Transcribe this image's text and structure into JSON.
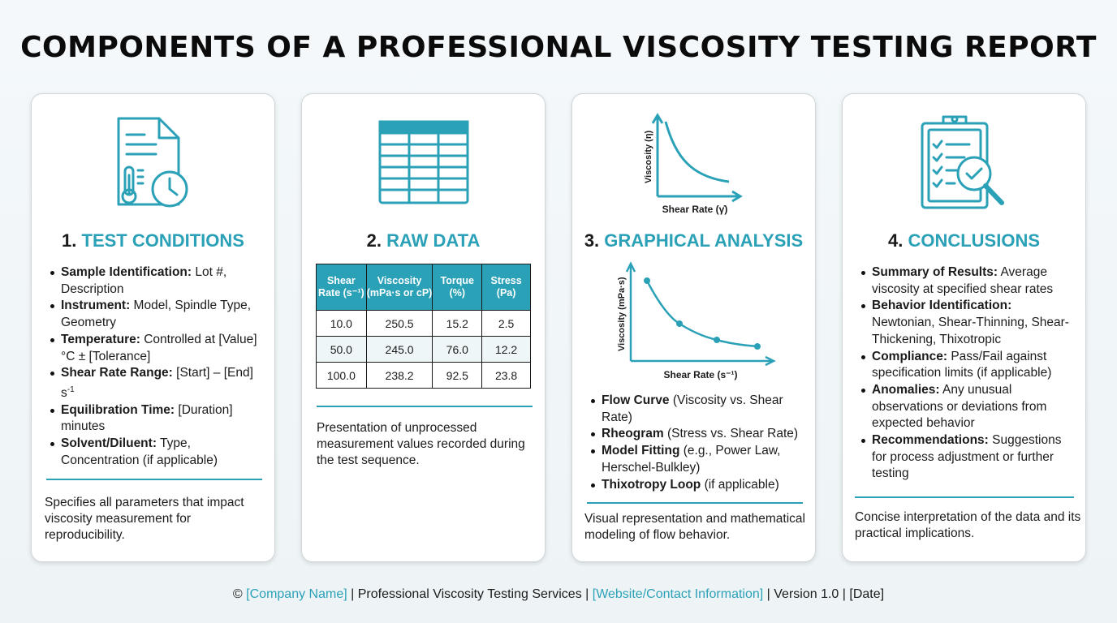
{
  "title": "COMPONENTS OF A PROFESSIONAL VISCOSITY TESTING REPORT",
  "colors": {
    "accent": "#2ba1b8",
    "text": "#111111",
    "card_bg": "#ffffff"
  },
  "cards": [
    {
      "number": "1.",
      "title": "TEST CONDITIONS",
      "icon": "document-thermometer-clock-icon",
      "bullets": [
        {
          "label": "Sample Identification:",
          "text": " Lot #, Description"
        },
        {
          "label": "Instrument:",
          "text": " Model, Spindle Type, Geometry"
        },
        {
          "label": "Temperature:",
          "text": " Controlled at [Value]°C ± [Tolerance]"
        },
        {
          "label": "Shear Rate Range:",
          "text": " [Start] – [End] s",
          "sup": "-1"
        },
        {
          "label": "Equilibration Time:",
          "text": " [Duration] minutes"
        },
        {
          "label": "Solvent/Diluent:",
          "text": " Type, Concentration (if applicable)"
        }
      ],
      "summary": "Specifies all parameters that impact viscosity measurement for reproducibility."
    },
    {
      "number": "2.",
      "title": "RAW DATA",
      "icon": "spreadsheet-table-icon",
      "table": {
        "headers": [
          "Shear Rate (s⁻¹)",
          "Viscosity (mPa·s or cP)",
          "Torque (%)",
          "Stress (Pa)"
        ],
        "rows": [
          [
            "10.0",
            "250.5",
            "15.2",
            "2.5"
          ],
          [
            "50.0",
            "245.0",
            "76.0",
            "12.2"
          ],
          [
            "100.0",
            "238.2",
            "92.5",
            "23.8"
          ]
        ]
      },
      "summary": "Presentation of unprocessed measurement values recorded during the test sequence."
    },
    {
      "number": "3.",
      "title": "GRAPHICAL ANALYSIS",
      "icon": "flow-curve-chart-icon",
      "icon_chart": {
        "ylabel": "Viscosity (η)",
        "xlabel": "Shear Rate (γ̇)"
      },
      "chart": {
        "ylabel": "Viscosity (mPa·s)",
        "xlabel": "Shear Rate (s⁻¹)"
      },
      "bullets": [
        {
          "label": "Flow Curve",
          "text": " (Viscosity vs. Shear Rate)"
        },
        {
          "label": "Rheogram",
          "text": " (Stress vs. Shear Rate)"
        },
        {
          "label": "Model Fitting",
          "text": " (e.g., Power Law, Herschel-Bulkley)"
        },
        {
          "label": "Thixotropy Loop",
          "text": " (if applicable)"
        }
      ],
      "summary": "Visual representation and mathematical modeling of flow behavior."
    },
    {
      "number": "4.",
      "title": "CONCLUSIONS",
      "icon": "clipboard-checklist-magnifier-icon",
      "bullets": [
        {
          "label": "Summary of Results:",
          "text": " Average viscosity at specified shear rates"
        },
        {
          "label": "Behavior Identification:",
          "text": " Newtonian, Shear-Thinning, Shear-Thickening, Thixotropic"
        },
        {
          "label": "Compliance:",
          "text": " Pass/Fail against specification limits (if applicable)"
        },
        {
          "label": "Anomalies:",
          "text": " Any unusual observations or deviations from expected behavior"
        },
        {
          "label": "Recommendations:",
          "text": " Suggestions for process adjustment or further testing"
        }
      ],
      "summary": "Concise interpretation of the data and its practical implications."
    }
  ],
  "footer": {
    "copyright": "©",
    "company": "[Company Name]",
    "sep1": " | Professional Viscosity Testing Services | ",
    "website": "[Website/Contact Information]",
    "sep2": " | Version 1.0 | [Date]"
  }
}
